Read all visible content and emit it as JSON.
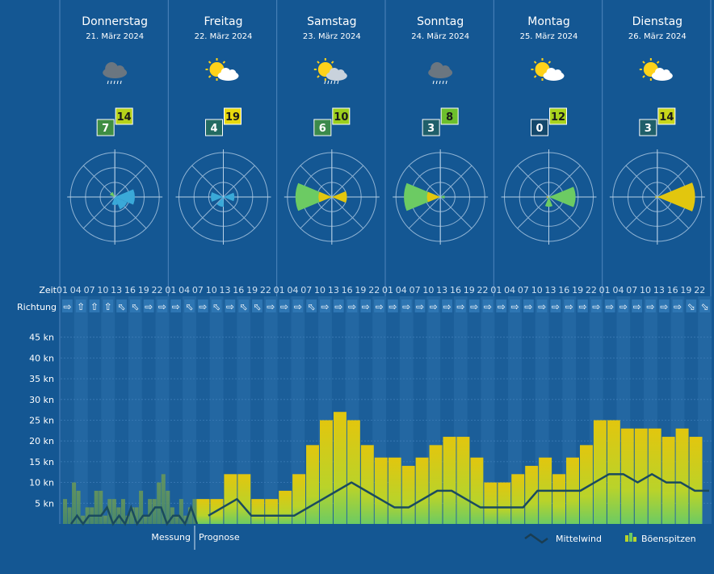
{
  "colors": {
    "background": "#145793",
    "day_divider": "#4f86bd",
    "mean_wind_line": "#1a4a5e",
    "gust_low": "#6ccb63",
    "gust_high": "#e2c60e",
    "measurement_bar": "#5a9a7a",
    "badge_mean_fill": "#2f7e5a",
    "badge_gust_fill": "#c8d61a"
  },
  "days": [
    {
      "name": "Donnerstag",
      "date": "21. März 2024",
      "icon": "cloud-rain-icon",
      "mean_kn": "7",
      "gust_kn": "14",
      "mean_badge_color": "#3f8e43",
      "gust_badge_color": "#b6d21a",
      "rose": [
        {
          "dir_deg": 90,
          "len": 0.45,
          "color": "#3aa9d8"
        },
        {
          "dir_deg": 135,
          "len": 0.3,
          "color": "#3aa9d8"
        },
        {
          "dir_deg": 315,
          "len": 0.12,
          "color": "#6ccb63"
        },
        {
          "dir_deg": 180,
          "len": 0.18,
          "color": "#3aa9d8"
        }
      ]
    },
    {
      "name": "Freitag",
      "date": "22. März 2024",
      "icon": "sun-cloud-icon",
      "mean_kn": "4",
      "gust_kn": "19",
      "mean_badge_color": "#236b62",
      "gust_badge_color": "#e8d90d",
      "rose": [
        {
          "dir_deg": 270,
          "len": 0.28,
          "color": "#3aa9d8"
        },
        {
          "dir_deg": 90,
          "len": 0.25,
          "color": "#3aa9d8"
        },
        {
          "dir_deg": 200,
          "len": 0.22,
          "color": "#3aa9d8"
        }
      ]
    },
    {
      "name": "Samstag",
      "date": "23. März 2024",
      "icon": "sun-cloud-rain-icon",
      "mean_kn": "6",
      "gust_kn": "10",
      "mean_badge_color": "#3b8a4b",
      "gust_badge_color": "#9ccf1c",
      "rose": [
        {
          "dir_deg": 270,
          "len": 0.82,
          "color": "#6ccb63"
        },
        {
          "dir_deg": 90,
          "len": 0.34,
          "color": "#e2c60e"
        },
        {
          "dir_deg": 270,
          "len": 0.3,
          "color": "#e2c60e"
        }
      ]
    },
    {
      "name": "Sonntag",
      "date": "24. März 2024",
      "icon": "cloud-rain-icon",
      "mean_kn": "3",
      "gust_kn": "8",
      "mean_badge_color": "#1f5f6a",
      "gust_badge_color": "#6cbf2d",
      "rose": [
        {
          "dir_deg": 270,
          "len": 0.82,
          "color": "#6ccb63"
        },
        {
          "dir_deg": 270,
          "len": 0.3,
          "color": "#e2c60e"
        },
        {
          "dir_deg": 90,
          "len": 0.1,
          "color": "#6ccb63"
        }
      ]
    },
    {
      "name": "Montag",
      "date": "25. März 2024",
      "icon": "sun-cloud-icon",
      "mean_kn": "0",
      "gust_kn": "12",
      "mean_badge_color": "#14486c",
      "gust_badge_color": "#a8d21c",
      "rose": [
        {
          "dir_deg": 90,
          "len": 0.6,
          "color": "#6ccb63"
        },
        {
          "dir_deg": 180,
          "len": 0.22,
          "color": "#6ccb63"
        },
        {
          "dir_deg": 270,
          "len": 0.05,
          "color": "#e2c60e"
        }
      ]
    },
    {
      "name": "Dienstag",
      "date": "26. März 2024",
      "icon": "sun-cloud-icon",
      "mean_kn": "3",
      "gust_kn": "14",
      "mean_badge_color": "#1f5f6a",
      "gust_badge_color": "#c8d61a",
      "rose": [
        {
          "dir_deg": 90,
          "len": 0.85,
          "color": "#e2c60e"
        },
        {
          "dir_deg": 270,
          "len": 0.05,
          "color": "#e2c60e"
        }
      ]
    }
  ],
  "labels": {
    "zeit": "Zeit",
    "richtung": "Richtung",
    "messung": "Messung",
    "prognose": "Prognose",
    "legend_mean": "Mittelwind",
    "legend_gust": "Böenspitzen"
  },
  "hour_labels": [
    "01",
    "04",
    "07",
    "10",
    "13",
    "16",
    "19",
    "22"
  ],
  "direction_arrows": [
    "E",
    "N",
    "N",
    "N",
    "NW",
    "NW",
    "E",
    "E",
    "E",
    "NW",
    "E",
    "NW",
    "E",
    "NW",
    "NW",
    "E",
    "E",
    "E",
    "NW",
    "E",
    "E",
    "E",
    "E",
    "E",
    "E",
    "E",
    "E",
    "E",
    "E",
    "E",
    "E",
    "E",
    "E",
    "E",
    "E",
    "E",
    "E",
    "E",
    "E",
    "E",
    "E",
    "E",
    "E",
    "E",
    "E",
    "E",
    "SE",
    "SE",
    "SE",
    "SE",
    "W",
    "W",
    "W",
    "E",
    "W",
    "W",
    "W",
    "W",
    "W",
    "W",
    "W",
    "W",
    "W",
    "W"
  ],
  "chart_data": {
    "type": "bar",
    "y_axis": {
      "unit": "kn",
      "ticks": [
        "5 kn",
        "10 kn",
        "15 kn",
        "20 kn",
        "25 kn",
        "30 kn",
        "35 kn",
        "40 kn",
        "45 kn"
      ],
      "tick_values": [
        5,
        10,
        15,
        20,
        25,
        30,
        35,
        40,
        45
      ],
      "ylim": [
        0,
        50
      ]
    },
    "x_hours_per_day": [
      "01",
      "04",
      "07",
      "10",
      "13",
      "16",
      "19",
      "22"
    ],
    "measurement_gusts_kn": [
      6,
      4,
      10,
      8,
      2,
      4,
      4,
      8,
      8,
      2,
      6,
      6,
      4,
      6,
      2,
      4,
      4,
      8,
      2,
      6,
      6,
      10,
      12,
      8,
      4,
      2,
      6,
      2,
      4,
      6
    ],
    "forecast_gusts_kn": [
      6,
      6,
      12,
      12,
      6,
      6,
      8,
      12,
      19,
      25,
      27,
      25,
      19,
      16,
      16,
      14,
      16,
      19,
      21,
      21,
      16,
      10,
      10,
      12,
      14,
      16,
      12,
      16,
      19,
      25,
      25,
      23,
      23,
      23,
      21,
      23,
      21
    ],
    "measurement_mean_kn": [
      0,
      2,
      0,
      2,
      2,
      2,
      4,
      0,
      2,
      0,
      4,
      0,
      2,
      2,
      4,
      4,
      0,
      2,
      2,
      0,
      4,
      0
    ],
    "forecast_mean_kn": [
      2,
      4,
      6,
      2,
      2,
      2,
      2,
      4,
      6,
      8,
      10,
      8,
      6,
      4,
      4,
      6,
      8,
      8,
      6,
      4,
      4,
      4,
      4,
      8,
      8,
      8,
      8,
      10,
      12,
      12,
      10,
      12,
      10,
      10,
      8,
      8
    ]
  }
}
